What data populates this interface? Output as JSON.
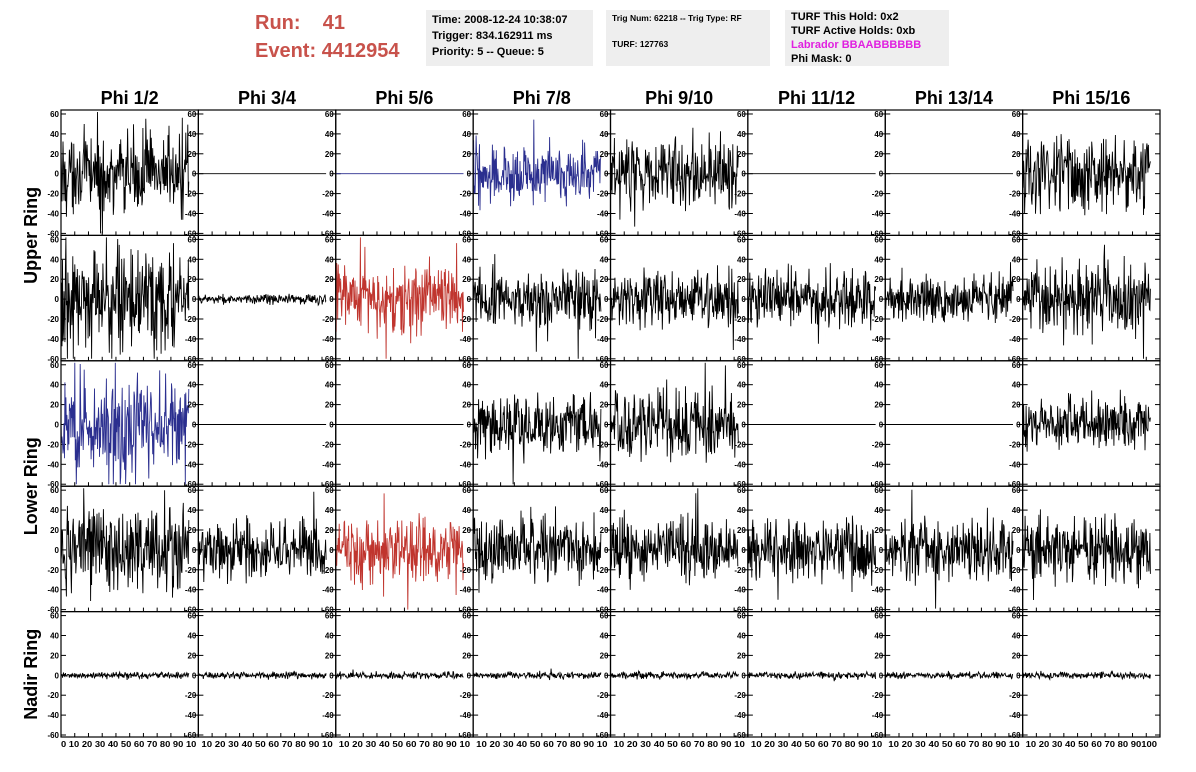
{
  "header": {
    "run_label": "Run:",
    "run_value": "41",
    "event_label": "Event:",
    "event_value": "4412954"
  },
  "time_box": {
    "time": "Time: 2008-12-24 10:38:07",
    "trigger": "Trigger: 834.162911 ms",
    "priority": "Priority: 5 -- Queue: 5"
  },
  "trig_box": {
    "trig_line": "Trig Num: 62218 -- Trig Type: RF",
    "turf_line": "TURF: 127763"
  },
  "turf_box": {
    "this_hold": "TURF This Hold: 0x2",
    "active_holds": "TURF Active Holds: 0xb",
    "labrador": "Labrador BBAABBBBBB",
    "phi_mask": "Phi Mask: 0"
  },
  "colors": {
    "header_red": "#c8524b",
    "labrador_magenta": "#e020e0",
    "trace_black": "#000000",
    "trace_blue": "#2b2f8f",
    "trace_red": "#c0352e"
  },
  "chart_data": {
    "type": "line",
    "columns": [
      "Phi 1/2",
      "Phi 3/4",
      "Phi 5/6",
      "Phi 7/8",
      "Phi 9/10",
      "Phi 11/12",
      "Phi 13/14",
      "Phi 15/16"
    ],
    "ring_labels": [
      {
        "text": "Upper Ring",
        "rows": [
          0,
          1
        ]
      },
      {
        "text": "Lower Ring",
        "rows": [
          2,
          3
        ]
      },
      {
        "text": "Nadir Ring",
        "rows": [
          4
        ]
      }
    ],
    "xlim": [
      0,
      100
    ],
    "ylim": [
      -62,
      64
    ],
    "y_ticks": [
      -60,
      -40,
      -20,
      0,
      20,
      40,
      60
    ],
    "x_ticks": [
      0,
      10,
      20,
      30,
      40,
      50,
      60,
      70,
      80,
      90,
      100
    ],
    "x_tick_labels_first": "0 10 20 30 40 50 60 70 80 90 10",
    "x_tick_labels_middle": "10 20 30 40 50 60 70 80 90 10",
    "x_tick_labels_last": "10 20 30 40 50 60 70 80 90100",
    "trace_samples": 260,
    "panels": [
      {
        "row": 0,
        "col": 0,
        "color": "#000000",
        "amplitude": 24,
        "flat": false
      },
      {
        "row": 0,
        "col": 1,
        "color": "#000000",
        "amplitude": 0,
        "flat": true
      },
      {
        "row": 0,
        "col": 2,
        "color": "#2b2f8f",
        "amplitude": 0,
        "flat": true
      },
      {
        "row": 0,
        "col": 3,
        "color": "#2b2f8f",
        "amplitude": 18,
        "flat": false
      },
      {
        "row": 0,
        "col": 4,
        "color": "#000000",
        "amplitude": 22,
        "flat": false
      },
      {
        "row": 0,
        "col": 5,
        "color": "#000000",
        "amplitude": 0,
        "flat": true
      },
      {
        "row": 0,
        "col": 6,
        "color": "#000000",
        "amplitude": 0,
        "flat": true
      },
      {
        "row": 0,
        "col": 7,
        "color": "#000000",
        "amplitude": 24,
        "flat": false
      },
      {
        "row": 1,
        "col": 0,
        "color": "#000000",
        "amplitude": 30,
        "flat": false
      },
      {
        "row": 1,
        "col": 1,
        "color": "#000000",
        "amplitude": 3,
        "flat": false
      },
      {
        "row": 1,
        "col": 2,
        "color": "#c0352e",
        "amplitude": 22,
        "flat": false
      },
      {
        "row": 1,
        "col": 3,
        "color": "#000000",
        "amplitude": 18,
        "flat": false
      },
      {
        "row": 1,
        "col": 4,
        "color": "#000000",
        "amplitude": 18,
        "flat": false
      },
      {
        "row": 1,
        "col": 5,
        "color": "#000000",
        "amplitude": 18,
        "flat": false
      },
      {
        "row": 1,
        "col": 6,
        "color": "#000000",
        "amplitude": 14,
        "flat": false
      },
      {
        "row": 1,
        "col": 7,
        "color": "#000000",
        "amplitude": 22,
        "flat": false
      },
      {
        "row": 2,
        "col": 0,
        "color": "#2b2f8f",
        "amplitude": 30,
        "flat": false
      },
      {
        "row": 2,
        "col": 1,
        "color": "#000000",
        "amplitude": 0,
        "flat": true
      },
      {
        "row": 2,
        "col": 2,
        "color": "#000000",
        "amplitude": 0,
        "flat": true
      },
      {
        "row": 2,
        "col": 3,
        "color": "#000000",
        "amplitude": 18,
        "flat": false
      },
      {
        "row": 2,
        "col": 4,
        "color": "#000000",
        "amplitude": 22,
        "flat": false
      },
      {
        "row": 2,
        "col": 5,
        "color": "#000000",
        "amplitude": 0,
        "flat": true
      },
      {
        "row": 2,
        "col": 6,
        "color": "#000000",
        "amplitude": 0,
        "flat": true
      },
      {
        "row": 2,
        "col": 7,
        "color": "#000000",
        "amplitude": 16,
        "flat": false
      },
      {
        "row": 3,
        "col": 0,
        "color": "#000000",
        "amplitude": 26,
        "flat": false
      },
      {
        "row": 3,
        "col": 1,
        "color": "#000000",
        "amplitude": 18,
        "flat": false
      },
      {
        "row": 3,
        "col": 2,
        "color": "#c0352e",
        "amplitude": 20,
        "flat": false
      },
      {
        "row": 3,
        "col": 3,
        "color": "#000000",
        "amplitude": 20,
        "flat": false
      },
      {
        "row": 3,
        "col": 4,
        "color": "#000000",
        "amplitude": 18,
        "flat": false
      },
      {
        "row": 3,
        "col": 5,
        "color": "#000000",
        "amplitude": 18,
        "flat": false
      },
      {
        "row": 3,
        "col": 6,
        "color": "#000000",
        "amplitude": 18,
        "flat": false
      },
      {
        "row": 3,
        "col": 7,
        "color": "#000000",
        "amplitude": 20,
        "flat": false
      },
      {
        "row": 4,
        "col": 0,
        "color": "#000000",
        "amplitude": 2,
        "flat": false
      },
      {
        "row": 4,
        "col": 1,
        "color": "#000000",
        "amplitude": 2,
        "flat": false
      },
      {
        "row": 4,
        "col": 2,
        "color": "#000000",
        "amplitude": 2,
        "flat": false
      },
      {
        "row": 4,
        "col": 3,
        "color": "#000000",
        "amplitude": 2,
        "flat": false
      },
      {
        "row": 4,
        "col": 4,
        "color": "#000000",
        "amplitude": 2,
        "flat": false
      },
      {
        "row": 4,
        "col": 5,
        "color": "#000000",
        "amplitude": 2,
        "flat": false
      },
      {
        "row": 4,
        "col": 6,
        "color": "#000000",
        "amplitude": 2,
        "flat": false
      },
      {
        "row": 4,
        "col": 7,
        "color": "#000000",
        "amplitude": 2,
        "flat": false
      }
    ]
  }
}
